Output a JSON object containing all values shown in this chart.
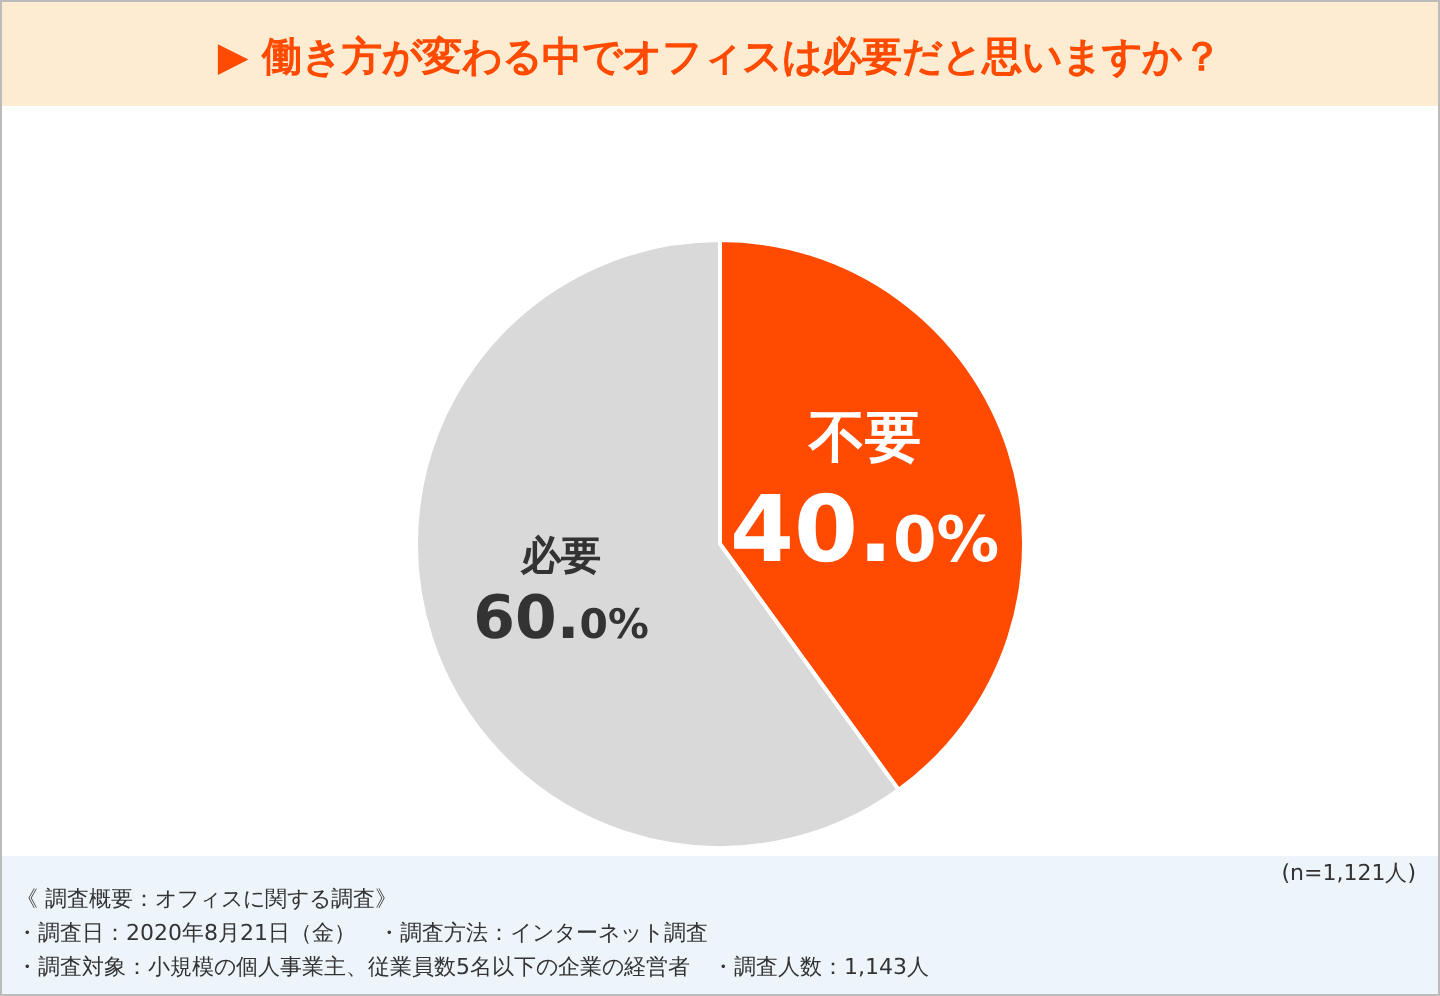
{
  "chart_data": {
    "type": "pie",
    "title": "▶ 働き方が変わる中でオフィスは必要だと思いますか？",
    "categories": [
      "不要",
      "必要"
    ],
    "values": [
      40,
      60
    ],
    "value_labels": [
      "40.0%",
      "60.0%"
    ],
    "colors": [
      "#ff4a00",
      "#d9d9d9"
    ],
    "annotations": [
      "(n=1,121人)",
      "《 調査概要：オフィスに関する調査》",
      "・調査日：2020年8月21日（金）　・調査方法：インターネット調査",
      "・調査対象：小規模の個人事業主、従業員数5名以下の企業の経営者　・調査人数：1,143人"
    ]
  }
}
